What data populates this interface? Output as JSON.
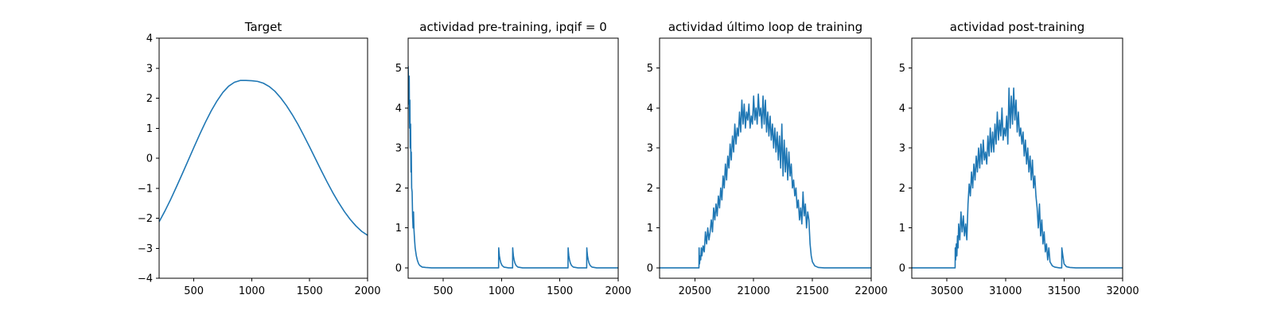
{
  "series_color": "#1f77b4",
  "chart_data": [
    {
      "type": "line",
      "title": "Target",
      "xlim": [
        200,
        2000
      ],
      "ylim": [
        -4,
        4
      ],
      "xticks": [
        500,
        1000,
        1500,
        2000
      ],
      "xtick_labels": [
        "500",
        "1000",
        "1500",
        "2000"
      ],
      "yticks": [
        -4,
        -3,
        -2,
        -1,
        0,
        1,
        2,
        3,
        4
      ],
      "ytick_labels": [
        "−4",
        "−3",
        "−2",
        "−1",
        "0",
        "1",
        "2",
        "3",
        "4"
      ],
      "series": [
        {
          "x": [
            200,
            250,
            300,
            350,
            400,
            450,
            500,
            550,
            600,
            650,
            700,
            750,
            800,
            850,
            900,
            950,
            1000,
            1050,
            1100,
            1150,
            1200,
            1250,
            1300,
            1350,
            1400,
            1450,
            1500,
            1550,
            1600,
            1650,
            1700,
            1750,
            1800,
            1850,
            1900,
            1950,
            2000
          ],
          "y": [
            -2.12,
            -1.76,
            -1.37,
            -0.95,
            -0.52,
            -0.08,
            0.36,
            0.79,
            1.2,
            1.58,
            1.91,
            2.19,
            2.4,
            2.53,
            2.59,
            2.59,
            2.58,
            2.56,
            2.5,
            2.39,
            2.23,
            2.01,
            1.75,
            1.45,
            1.12,
            0.75,
            0.37,
            -0.02,
            -0.41,
            -0.79,
            -1.15,
            -1.48,
            -1.78,
            -2.04,
            -2.26,
            -2.44,
            -2.57
          ]
        }
      ]
    },
    {
      "type": "line",
      "title": "actividad pre-training, ipqif = 0",
      "xlim": [
        200,
        2000
      ],
      "ylim": [
        -0.26,
        5.75
      ],
      "xticks": [
        500,
        1000,
        1500,
        2000
      ],
      "xtick_labels": [
        "500",
        "1000",
        "1500",
        "2000"
      ],
      "yticks": [
        0,
        1,
        2,
        3,
        4,
        5
      ],
      "ytick_labels": [
        "0",
        "1",
        "2",
        "3",
        "4",
        "5"
      ],
      "series": [
        {
          "x": [
            200,
            203,
            206,
            209,
            212,
            215,
            218,
            221,
            224,
            227,
            230,
            234,
            238,
            242,
            246,
            250,
            255,
            260,
            270,
            280,
            290,
            300,
            320,
            350,
            400,
            500,
            600,
            700,
            800,
            900,
            975,
            976,
            978,
            982,
            988,
            995,
            1005,
            1020,
            1040,
            1060,
            1095,
            1096,
            1098,
            1102,
            1108,
            1115,
            1125,
            1140,
            1160,
            1180,
            1200,
            1300,
            1400,
            1500,
            1570,
            1571,
            1573,
            1577,
            1583,
            1590,
            1600,
            1615,
            1635,
            1655,
            1670,
            1730,
            1731,
            1733,
            1737,
            1743,
            1750,
            1760,
            1775,
            1795,
            1815,
            1830,
            1900,
            2000
          ],
          "y": [
            5.05,
            4.7,
            4.1,
            4.8,
            3.5,
            4.2,
            3.0,
            3.6,
            2.4,
            2.9,
            2.0,
            1.9,
            1.3,
            1.0,
            1.4,
            0.95,
            0.7,
            0.5,
            0.3,
            0.18,
            0.1,
            0.06,
            0.02,
            0.01,
            0.0,
            0.0,
            0.0,
            0.0,
            0.0,
            0.0,
            0.0,
            0.5,
            0.42,
            0.3,
            0.2,
            0.12,
            0.06,
            0.02,
            0.01,
            0.0,
            0.0,
            0.5,
            0.42,
            0.3,
            0.2,
            0.12,
            0.06,
            0.02,
            0.01,
            0.0,
            0.0,
            0.0,
            0.0,
            0.0,
            0.0,
            0.5,
            0.42,
            0.3,
            0.2,
            0.12,
            0.06,
            0.02,
            0.01,
            0.0,
            0.0,
            0.0,
            0.5,
            0.42,
            0.3,
            0.2,
            0.12,
            0.06,
            0.02,
            0.01,
            0.0,
            0.0,
            0.0,
            0.0
          ]
        }
      ]
    },
    {
      "type": "line",
      "title": "actividad último loop de training",
      "xlim": [
        20200,
        22000
      ],
      "ylim": [
        -0.26,
        5.75
      ],
      "xticks": [
        20500,
        21000,
        21500,
        22000
      ],
      "xtick_labels": [
        "20500",
        "21000",
        "21500",
        "22000"
      ],
      "yticks": [
        0,
        1,
        2,
        3,
        4,
        5
      ],
      "ytick_labels": [
        "0",
        "1",
        "2",
        "3",
        "4",
        "5"
      ],
      "series": [
        {
          "x": [
            20200,
            20300,
            20400,
            20500,
            20535,
            20536,
            20540,
            20545,
            20550,
            20555,
            20560,
            20570,
            20580,
            20590,
            20600,
            20610,
            20620,
            20630,
            20640,
            20650,
            20660,
            20670,
            20680,
            20690,
            20700,
            20710,
            20720,
            20730,
            20740,
            20750,
            20760,
            20770,
            20780,
            20790,
            20800,
            20810,
            20820,
            20830,
            20840,
            20850,
            20860,
            20870,
            20880,
            20890,
            20900,
            20910,
            20920,
            20930,
            20940,
            20950,
            20960,
            20970,
            20980,
            20990,
            21000,
            21010,
            21020,
            21030,
            21040,
            21050,
            21060,
            21070,
            21080,
            21090,
            21100,
            21110,
            21120,
            21130,
            21140,
            21150,
            21160,
            21170,
            21180,
            21190,
            21200,
            21210,
            21220,
            21230,
            21240,
            21250,
            21260,
            21270,
            21280,
            21290,
            21300,
            21310,
            21320,
            21330,
            21340,
            21350,
            21360,
            21370,
            21380,
            21390,
            21400,
            21410,
            21420,
            21430,
            21440,
            21450,
            21460,
            21470,
            21480,
            21490,
            21500,
            21520,
            21550,
            21600,
            21700,
            21800,
            22000
          ],
          "y": [
            0,
            0,
            0,
            0,
            0,
            0.5,
            0.1,
            0.3,
            0.2,
            0.5,
            0.3,
            0.55,
            0.4,
            0.9,
            0.6,
            1.0,
            0.7,
            0.9,
            1.2,
            0.9,
            1.5,
            1.2,
            1.6,
            1.3,
            1.8,
            1.5,
            2.0,
            1.7,
            2.3,
            2.0,
            2.6,
            2.2,
            2.8,
            2.5,
            3.1,
            2.7,
            3.3,
            2.9,
            3.6,
            3.1,
            3.5,
            3.3,
            3.9,
            3.4,
            4.2,
            3.6,
            4.1,
            3.5,
            3.9,
            3.7,
            4.1,
            3.5,
            3.8,
            3.6,
            4.3,
            3.7,
            4.0,
            3.6,
            4.35,
            3.8,
            4.0,
            3.5,
            4.3,
            3.6,
            4.2,
            3.4,
            3.9,
            3.3,
            3.8,
            3.2,
            3.6,
            3.0,
            3.5,
            2.9,
            3.4,
            2.7,
            3.3,
            2.5,
            3.6,
            2.3,
            3.2,
            2.4,
            3.0,
            2.2,
            2.9,
            2.3,
            2.6,
            2.0,
            2.2,
            1.8,
            2.0,
            1.5,
            1.7,
            1.2,
            1.5,
            1.1,
            1.9,
            1.3,
            1.6,
            1.0,
            1.4,
            1.2,
            0.6,
            0.3,
            0.15,
            0.05,
            0.01,
            0,
            0,
            0,
            0
          ]
        }
      ]
    },
    {
      "type": "line",
      "title": "actividad post-training",
      "xlim": [
        30200,
        32000
      ],
      "ylim": [
        -0.26,
        5.75
      ],
      "xticks": [
        30500,
        31000,
        31500,
        32000
      ],
      "xtick_labels": [
        "30500",
        "31000",
        "31500",
        "32000"
      ],
      "yticks": [
        0,
        1,
        2,
        3,
        4,
        5
      ],
      "ytick_labels": [
        "0",
        "1",
        "2",
        "3",
        "4",
        "5"
      ],
      "series": [
        {
          "x": [
            30200,
            30300,
            30400,
            30500,
            30570,
            30571,
            30575,
            30580,
            30585,
            30590,
            30595,
            30600,
            30610,
            30620,
            30630,
            30640,
            30650,
            30660,
            30670,
            30680,
            30690,
            30700,
            30710,
            30720,
            30730,
            30740,
            30750,
            30760,
            30770,
            30780,
            30790,
            30800,
            30810,
            30820,
            30830,
            30840,
            30850,
            30860,
            30870,
            30880,
            30890,
            30900,
            30910,
            30920,
            30930,
            30940,
            30950,
            30960,
            30970,
            30980,
            30990,
            31000,
            31010,
            31020,
            31030,
            31040,
            31050,
            31060,
            31070,
            31080,
            31090,
            31100,
            31110,
            31120,
            31130,
            31140,
            31150,
            31160,
            31170,
            31180,
            31190,
            31200,
            31210,
            31220,
            31230,
            31240,
            31250,
            31260,
            31270,
            31280,
            31290,
            31300,
            31310,
            31320,
            31330,
            31340,
            31350,
            31360,
            31370,
            31380,
            31400,
            31420,
            31440,
            31460,
            31480,
            31481,
            31490,
            31500,
            31520,
            31550,
            31600,
            31700,
            31800,
            32000
          ],
          "y": [
            0,
            0,
            0,
            0,
            0,
            0.5,
            0.2,
            0.6,
            0.3,
            0.8,
            0.5,
            1.1,
            0.7,
            1.4,
            0.9,
            1.3,
            0.8,
            1.1,
            0.7,
            1.6,
            2.1,
            1.8,
            2.4,
            2.0,
            2.6,
            2.2,
            2.8,
            2.4,
            3.0,
            2.5,
            3.1,
            2.6,
            3.2,
            2.7,
            2.9,
            2.6,
            3.3,
            2.8,
            3.5,
            2.9,
            3.4,
            2.9,
            3.6,
            3.1,
            3.9,
            3.2,
            3.7,
            3.3,
            4.0,
            3.2,
            3.5,
            3.3,
            3.8,
            3.1,
            4.5,
            3.5,
            4.3,
            3.6,
            4.5,
            3.7,
            4.2,
            3.4,
            3.9,
            3.3,
            3.5,
            3.1,
            3.4,
            2.8,
            3.2,
            2.6,
            3.0,
            2.4,
            2.8,
            2.2,
            2.7,
            2.0,
            2.3,
            1.8,
            1.5,
            1.0,
            1.6,
            0.8,
            1.2,
            0.6,
            0.9,
            0.4,
            0.6,
            0.2,
            0.5,
            0.15,
            0.05,
            0.02,
            0.01,
            0.0,
            0.0,
            0.5,
            0.3,
            0.1,
            0.03,
            0.01,
            0,
            0,
            0,
            0
          ]
        }
      ]
    }
  ]
}
